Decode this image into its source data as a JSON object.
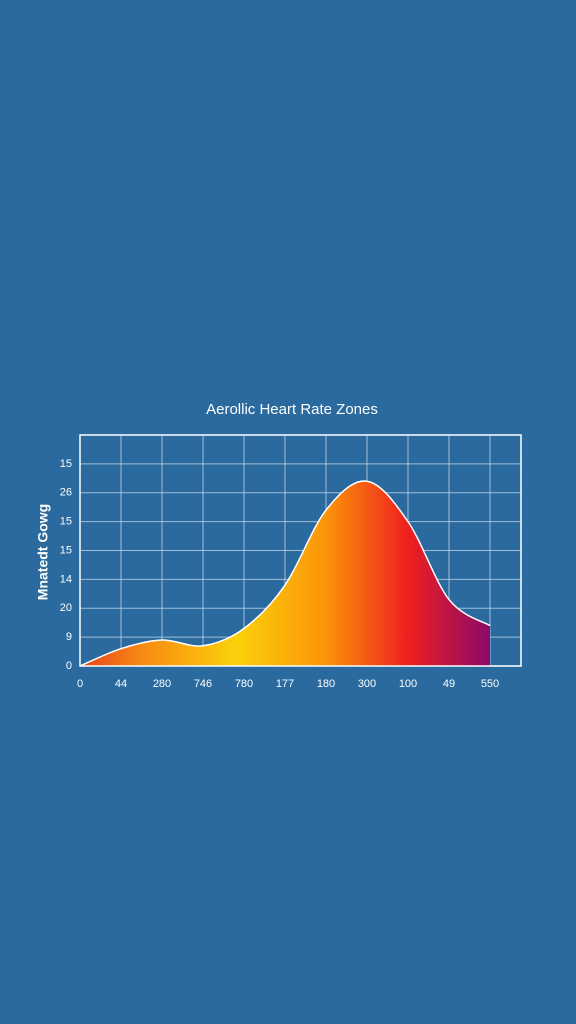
{
  "chart_data": {
    "type": "area",
    "title": "Aerollic Heart Rate Zones",
    "y_label": "Mnatedt Gowg",
    "categories": [
      "0",
      "44",
      "280",
      "746",
      "780",
      "177",
      "180",
      "300",
      "100",
      "49",
      "550"
    ],
    "values": [
      0,
      0.6,
      0.9,
      0.7,
      1.3,
      2.8,
      5.4,
      6.4,
      5.0,
      2.3,
      1.4
    ],
    "y_labels": [
      "0",
      "9",
      "20",
      "14",
      "15",
      "15",
      "26",
      "15"
    ],
    "ylim": [
      0,
      8
    ],
    "grid": true
  }
}
